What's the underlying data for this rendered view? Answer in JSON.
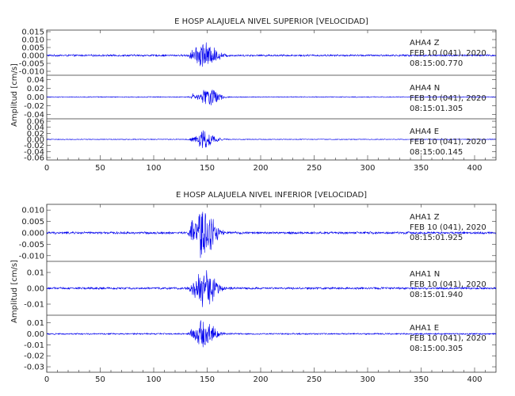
{
  "time_axis": {
    "ticks": [
      0,
      50,
      100,
      150,
      200,
      250,
      300,
      350,
      400
    ],
    "xlim": [
      0,
      420
    ]
  },
  "colors": {
    "trace": "#0000ee",
    "axes": "#333333",
    "text": "#222222"
  },
  "chart_data": [
    {
      "type": "line",
      "title": "E HOSP ALAJUELA NIVEL SUPERIOR [VELOCIDAD]",
      "ylabel": "Amplitud [cm/s]",
      "xlim": [
        0,
        420
      ],
      "grid": false,
      "series": [
        {
          "station": "AHA4",
          "component": "Z",
          "date": "FEB 10 (041), 2020",
          "time": "08:15:00.770",
          "ylim": [
            -0.0125,
            0.016
          ],
          "yticks": [
            "0.015",
            "0.010",
            "0.005",
            "0.000",
            "-0.005",
            "-0.010"
          ],
          "envelope": {
            "noise": 0.0007,
            "peaks": [
              {
                "t": 137,
                "amp": 0.0045
              },
              {
                "t": 145,
                "amp": 0.009
              },
              {
                "t": 155,
                "amp": 0.003
              }
            ]
          }
        },
        {
          "station": "AHA4",
          "component": "N",
          "date": "FEB 10 (041), 2020",
          "time": "08:15:01.305",
          "ylim": [
            -0.05,
            0.05
          ],
          "yticks": [
            "0.04",
            "0.02",
            "0.00",
            "-0.02",
            "-0.04"
          ],
          "envelope": {
            "noise": 0.0012,
            "peaks": [
              {
                "t": 137,
                "amp": 0.008
              },
              {
                "t": 148,
                "amp": 0.022
              },
              {
                "t": 156,
                "amp": 0.009
              }
            ]
          }
        },
        {
          "station": "AHA4",
          "component": "E",
          "date": "FEB 10 (041), 2020",
          "time": "08:15:00.145",
          "ylim": [
            -0.068,
            0.068
          ],
          "yticks": [
            "0.06",
            "0.04",
            "0.02",
            "0.00",
            "-0.02",
            "-0.04",
            "-0.06"
          ],
          "envelope": {
            "noise": 0.0015,
            "peaks": [
              {
                "t": 137,
                "amp": 0.01
              },
              {
                "t": 145,
                "amp": 0.03
              },
              {
                "t": 154,
                "amp": 0.009
              }
            ]
          }
        }
      ]
    },
    {
      "type": "line",
      "title": "E HOSP ALAJUELA NIVEL INFERIOR [VELOCIDAD]",
      "ylabel": "Amplitud [cm/s]",
      "xlim": [
        0,
        420
      ],
      "grid": false,
      "series": [
        {
          "station": "AHA1",
          "component": "Z",
          "date": "FEB 10 (041), 2020",
          "time": "08:15:01.925",
          "ylim": [
            -0.0125,
            0.0125
          ],
          "yticks": [
            "0.010",
            "0.005",
            "0.000",
            "-0.005",
            "-0.010"
          ],
          "envelope": {
            "noise": 0.0006,
            "peaks": [
              {
                "t": 137,
                "amp": 0.0065
              },
              {
                "t": 145,
                "amp": 0.011
              },
              {
                "t": 152,
                "amp": 0.004
              }
            ]
          }
        },
        {
          "station": "AHA1",
          "component": "N",
          "date": "FEB 10 (041), 2020",
          "time": "08:15:01.940",
          "ylim": [
            -0.017,
            0.017
          ],
          "yticks": [
            "0.01",
            "0.00",
            "-0.01"
          ],
          "envelope": {
            "noise": 0.0008,
            "peaks": [
              {
                "t": 137,
                "amp": 0.006
              },
              {
                "t": 145,
                "amp": 0.013
              },
              {
                "t": 153,
                "amp": 0.004
              }
            ]
          }
        },
        {
          "station": "AHA1",
          "component": "E",
          "date": "FEB 10 (041), 2020",
          "time": "08:15:00.305",
          "ylim": [
            -0.035,
            0.017
          ],
          "yticks": [
            "0.01",
            "0.00",
            "-0.01",
            "-0.02",
            "-0.03"
          ],
          "envelope": {
            "noise": 0.0008,
            "peaks": [
              {
                "t": 137,
                "amp": 0.006
              },
              {
                "t": 145,
                "amp": 0.015
              },
              {
                "t": 153,
                "amp": 0.004
              }
            ]
          }
        }
      ]
    }
  ]
}
